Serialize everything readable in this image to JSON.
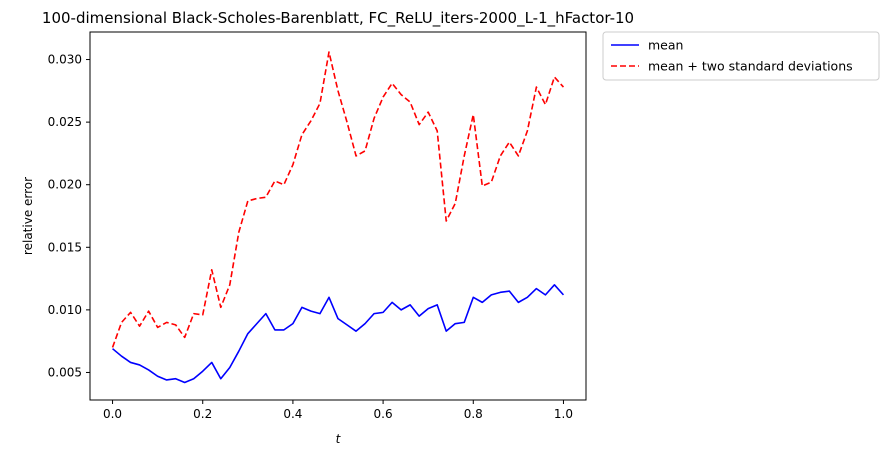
{
  "chart_data": {
    "type": "line",
    "title": "100-dimensional Black-Scholes-Barenblatt, FC_ReLU_iters-2000_L-1_hFactor-10",
    "xlabel": "t",
    "ylabel": "relative error",
    "xlim": [
      -0.05,
      1.05
    ],
    "ylim": [
      0.0028,
      0.0322
    ],
    "xticks": [
      0.0,
      0.2,
      0.4,
      0.6,
      0.8,
      1.0
    ],
    "xtick_labels": [
      "0.0",
      "0.2",
      "0.4",
      "0.6",
      "0.8",
      "1.0"
    ],
    "yticks": [
      0.005,
      0.01,
      0.015,
      0.02,
      0.025,
      0.03
    ],
    "ytick_labels": [
      "0.005",
      "0.010",
      "0.015",
      "0.020",
      "0.025",
      "0.030"
    ],
    "grid": false,
    "legend_placement": "outside-upper-right",
    "x": [
      0.0,
      0.02,
      0.04,
      0.06,
      0.08,
      0.1,
      0.12,
      0.14,
      0.16,
      0.18,
      0.2,
      0.22,
      0.24,
      0.26,
      0.28,
      0.3,
      0.32,
      0.34,
      0.36,
      0.38,
      0.4,
      0.42,
      0.44,
      0.46,
      0.48,
      0.5,
      0.52,
      0.54,
      0.56,
      0.58,
      0.6,
      0.62,
      0.64,
      0.66,
      0.68,
      0.7,
      0.72,
      0.74,
      0.76,
      0.78,
      0.8,
      0.82,
      0.84,
      0.86,
      0.88,
      0.9,
      0.92,
      0.94,
      0.96,
      0.98,
      1.0
    ],
    "series": [
      {
        "name": "mean",
        "color": "#0000ff",
        "style": "solid",
        "values": [
          0.0069,
          0.0063,
          0.0058,
          0.0056,
          0.0052,
          0.0047,
          0.0044,
          0.0045,
          0.0042,
          0.0045,
          0.0051,
          0.0058,
          0.0045,
          0.0054,
          0.0067,
          0.0081,
          0.0089,
          0.0097,
          0.0084,
          0.0084,
          0.0089,
          0.0102,
          0.0099,
          0.0097,
          0.011,
          0.0093,
          0.0088,
          0.0083,
          0.0089,
          0.0097,
          0.0098,
          0.0106,
          0.01,
          0.0104,
          0.0095,
          0.0101,
          0.0104,
          0.0083,
          0.0089,
          0.009,
          0.011,
          0.0106,
          0.0112,
          0.0114,
          0.0115,
          0.0106,
          0.011,
          0.0117,
          0.0112,
          0.012,
          0.0112
        ]
      },
      {
        "name": "mean + two standard deviations",
        "color": "#ff0000",
        "style": "dashed",
        "values": [
          0.007,
          0.009,
          0.0098,
          0.0087,
          0.0099,
          0.0086,
          0.009,
          0.0088,
          0.0078,
          0.0097,
          0.0096,
          0.0132,
          0.0102,
          0.012,
          0.0162,
          0.0187,
          0.0189,
          0.019,
          0.0203,
          0.02,
          0.0216,
          0.024,
          0.0251,
          0.0265,
          0.0306,
          0.0275,
          0.025,
          0.0223,
          0.0227,
          0.0253,
          0.027,
          0.0281,
          0.0272,
          0.0266,
          0.0248,
          0.0258,
          0.0243,
          0.0171,
          0.0185,
          0.0223,
          0.0256,
          0.0199,
          0.0202,
          0.0223,
          0.0234,
          0.0223,
          0.0243,
          0.0278,
          0.0264,
          0.0286,
          0.0278
        ]
      }
    ]
  }
}
